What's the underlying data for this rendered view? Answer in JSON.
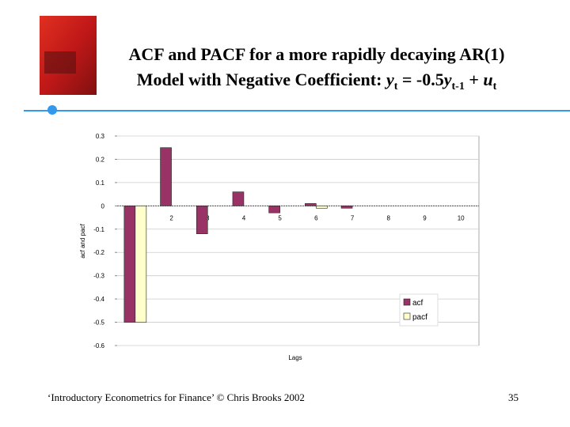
{
  "header": {
    "title_line1": "ACF and PACF for a more rapidly decaying AR(1)",
    "title_line2": [
      "Model with Negative Coefficient: ",
      "y",
      "t",
      " = -0.5",
      "y",
      "t-1",
      " + ",
      "u",
      "t"
    ]
  },
  "chart_data": {
    "type": "bar",
    "categories": [
      null,
      2,
      3,
      4,
      5,
      6,
      7,
      8,
      9,
      10
    ],
    "series": [
      {
        "name": "acf",
        "color": "#993366",
        "values": [
          -0.5,
          0.25,
          -0.12,
          0.06,
          -0.03,
          0.01,
          -0.01,
          0,
          0,
          0
        ]
      },
      {
        "name": "pacf",
        "color": "#ffffcc",
        "values": [
          -0.5,
          0,
          0,
          0,
          0,
          -0.01,
          0,
          0,
          0,
          0
        ]
      }
    ],
    "ylim": [
      -0.6,
      0.3
    ],
    "yticks": [
      -0.6,
      -0.5,
      -0.4,
      -0.3,
      -0.2,
      -0.1,
      0,
      0.1,
      0.2,
      0.3
    ],
    "y_label": "acf and pacf",
    "x_label": "Lags",
    "grid": true,
    "legend": "lower-right"
  },
  "footer": {
    "source": "‘Introductory Econometrics for Finance’ © Chris Brooks 2002",
    "page": "35"
  }
}
